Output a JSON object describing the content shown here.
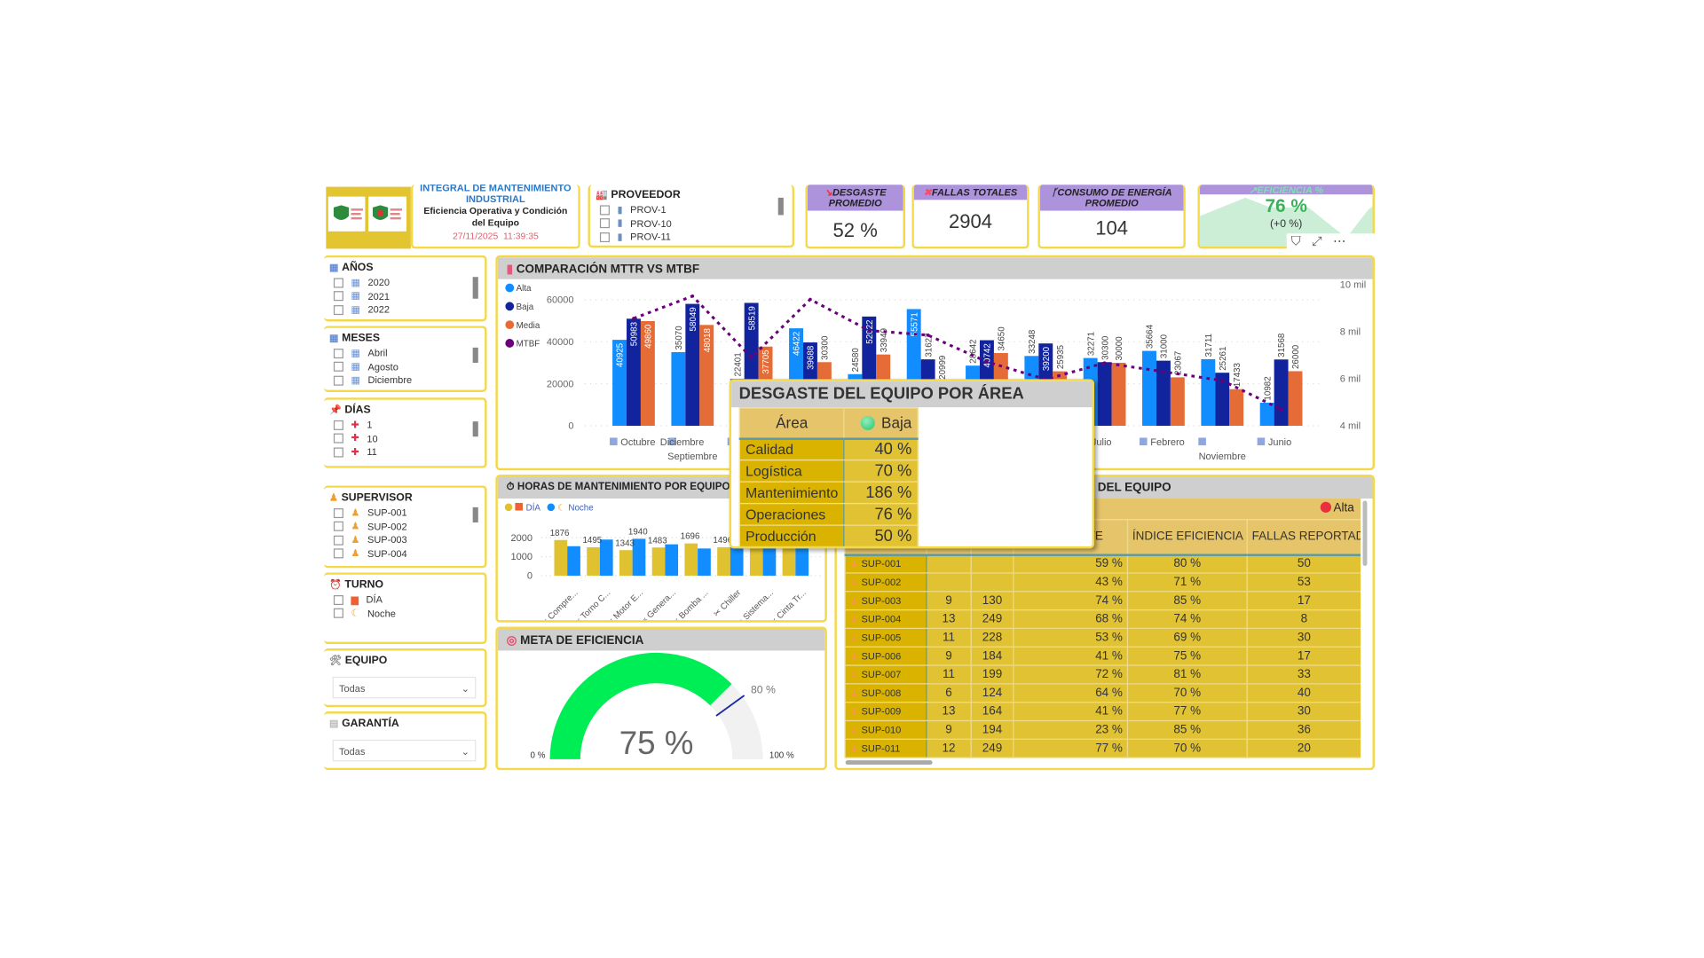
{
  "header": {
    "title_line1": "INTEGRAL DE MANTENIMIENTO",
    "title_line2": "INDUSTRIAL",
    "subtitle": "Eficiencia Operativa y Condición del Equipo",
    "datetime": "27/11/2025  11:39:35"
  },
  "proveedor": {
    "title": "PROVEEDOR",
    "items": [
      "PROV-1",
      "PROV-10",
      "PROV-11"
    ]
  },
  "kpis": [
    {
      "title": "DESGASTE PROMEDIO",
      "value": "52 %",
      "icon": "chart-down-icon"
    },
    {
      "title": "FALLAS TOTALES",
      "value": "2904",
      "icon": "x-mark-icon"
    },
    {
      "title": "CONSUMO DE ENERGÍA PROMEDIO",
      "value": "104",
      "icon": "plug-icon"
    },
    {
      "title": "EFICIENCIA %",
      "value": "76 %",
      "delta": "(+0 %)",
      "icon": "chart-up-icon"
    }
  ],
  "visual_actions": {
    "filter": "filter-icon",
    "focus": "focus-mode-icon",
    "more": "more-options-icon"
  },
  "slicers": {
    "anos": {
      "title": "AÑOS",
      "items": [
        "2020",
        "2021",
        "2022"
      ]
    },
    "meses": {
      "title": "MESES",
      "items": [
        "Abril",
        "Agosto",
        "Diciembre"
      ]
    },
    "dias": {
      "title": "DÍAS",
      "items": [
        "1",
        "10",
        "11"
      ]
    },
    "supervisor": {
      "title": "SUPERVISOR",
      "items": [
        "SUP-001",
        "SUP-002",
        "SUP-003",
        "SUP-004"
      ]
    },
    "turno": {
      "title": "TURNO",
      "items": [
        "DÍA",
        "Noche"
      ]
    },
    "equipo": {
      "title": "EQUIPO",
      "value": "Todas"
    },
    "garantia": {
      "title": "GARANTÍA",
      "value": "Todas"
    }
  },
  "mttr_chart": {
    "title": "COMPARACIÓN MTTR VS MTBF",
    "chart_data": {
      "type": "bar+line",
      "categories": [
        "Octubre",
        "Septiembre",
        "Diciembre",
        "",
        "",
        "",
        "",
        "",
        "Julio",
        "Febrero",
        "Noviembre",
        "Junio"
      ],
      "series": [
        {
          "name": "Alta",
          "color": "#118DFF",
          "values": [
            40925,
            35070,
            22401,
            46422,
            24580,
            55571,
            28642,
            33248,
            32271,
            35664,
            31711,
            10982
          ]
        },
        {
          "name": "Baja",
          "color": "#12239E",
          "values": [
            50983,
            58049,
            58519,
            39688,
            52022,
            31627,
            40742,
            39200,
            30300,
            31000,
            25261,
            31568
          ]
        },
        {
          "name": "Media",
          "color": "#E66C37",
          "values": [
            49860,
            48018,
            37705,
            30300,
            33949,
            20999,
            34650,
            25935,
            30000,
            23067,
            17433,
            26000
          ]
        },
        {
          "name": "MTBF",
          "color": "#6B007B",
          "axis": "right",
          "values": [
            8560,
            9510,
            6900,
            9370,
            8050,
            7850,
            6720,
            5970,
            6670,
            6300,
            5920,
            4700
          ]
        }
      ],
      "y_left": {
        "ticks": [
          "0",
          "20000",
          "40000",
          "60000"
        ],
        "range": [
          0,
          60000
        ]
      },
      "y_right": {
        "ticks": [
          "4 mil",
          "6 mil",
          "8 mil",
          "10 mil"
        ],
        "range": [
          4000,
          10000
        ]
      },
      "legend": "left"
    }
  },
  "horas_chart": {
    "title": "HORAS DE MANTENIMIENTO POR EQUIPO",
    "chart_data": {
      "type": "bar",
      "categories": [
        "Compre...",
        "Torno C...",
        "Motor E...",
        "Genera...",
        "Bomba ...",
        "Chiller",
        "Sistema...",
        "Cinta Tr..."
      ],
      "series": [
        {
          "name": "DÍA",
          "color": "#E0C231",
          "values": [
            1876,
            1495,
            1343,
            1483,
            1696,
            1496,
            1500,
            1500
          ]
        },
        {
          "name": "Noche",
          "color": "#118DFF",
          "values": [
            1550,
            1900,
            1940,
            1650,
            1430,
            1500,
            1500,
            1500
          ]
        }
      ],
      "labels": [
        "1876",
        "1495",
        "1343",
        "1940",
        "1483",
        "1696",
        "1496"
      ],
      "y_ticks": [
        "0",
        "1000",
        "2000"
      ],
      "range": [
        0,
        2000
      ],
      "legend": "top-left"
    }
  },
  "meta": {
    "title": "META DE EFICIENCIA",
    "value": 75,
    "value_label": "75 %",
    "target": 80,
    "target_label": "80 %",
    "min_label": "0 %",
    "max_label": "100 %",
    "fill_color": "#00EE55"
  },
  "table": {
    "title": "DEL EQUIPO",
    "group_label": "Alta",
    "columns": [
      "",
      "",
      "",
      "DESGASTE",
      "ÍNDICE EFICIENCIA",
      "FALLAS REPORTAD"
    ],
    "rows": [
      [
        "SUP-001",
        "",
        "",
        "59 %",
        "80 %",
        "50"
      ],
      [
        "SUP-002",
        "",
        "",
        "43 %",
        "71 %",
        "53"
      ],
      [
        "SUP-003",
        "9",
        "130",
        "74 %",
        "85 %",
        "17"
      ],
      [
        "SUP-004",
        "13",
        "249",
        "68 %",
        "74 %",
        "8"
      ],
      [
        "SUP-005",
        "11",
        "228",
        "53 %",
        "69 %",
        "30"
      ],
      [
        "SUP-006",
        "9",
        "184",
        "41 %",
        "75 %",
        "17"
      ],
      [
        "SUP-007",
        "11",
        "199",
        "72 %",
        "81 %",
        "33"
      ],
      [
        "SUP-008",
        "6",
        "124",
        "64 %",
        "70 %",
        "40"
      ],
      [
        "SUP-009",
        "13",
        "164",
        "41 %",
        "77 %",
        "30"
      ],
      [
        "SUP-010",
        "9",
        "194",
        "23 %",
        "85 %",
        "36"
      ],
      [
        "SUP-011",
        "12",
        "249",
        "77 %",
        "70 %",
        "20"
      ]
    ]
  },
  "popup": {
    "title": "DESGASTE DEL EQUIPO POR ÁREA",
    "col_area": "Área",
    "col_baja": "Baja",
    "rows": [
      {
        "area": "Calidad",
        "value": "40 %"
      },
      {
        "area": "Logística",
        "value": "70 %"
      },
      {
        "area": "Mantenimiento",
        "value": "186 %"
      },
      {
        "area": "Operaciones",
        "value": "76 %"
      },
      {
        "area": "Producción",
        "value": "50 %"
      }
    ]
  }
}
